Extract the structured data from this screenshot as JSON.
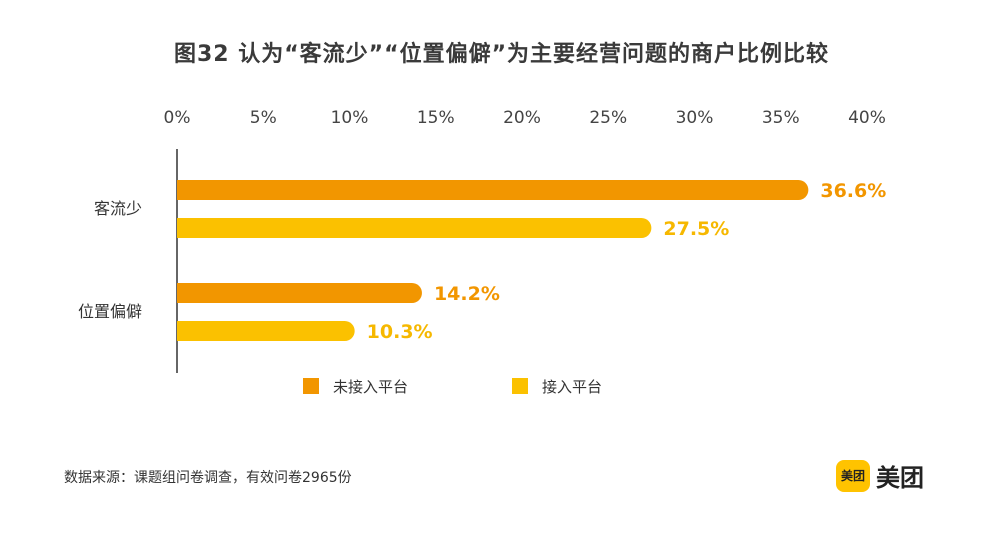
{
  "title": "图32  认为“客流少”“位置偏僻”为主要经营问题的商户比例比较",
  "source": "数据来源：课题组问卷调查，有效问卷2965份",
  "logo": {
    "badge_text": "美团",
    "text": "美团",
    "color": "#FFC300"
  },
  "colors": {
    "series1": "#F29600",
    "series2": "#FBC100",
    "value_label1": "#F29600",
    "value_label2": "#F6B800"
  },
  "chart_data": {
    "type": "bar",
    "orientation": "horizontal",
    "categories": [
      "客流少",
      "位置偏僻"
    ],
    "series": [
      {
        "name": "未接入平台",
        "values": [
          36.6,
          14.2
        ],
        "labels": [
          "36.6%",
          "14.2%"
        ]
      },
      {
        "name": "接入平台",
        "values": [
          27.5,
          10.3
        ],
        "labels": [
          "27.5%",
          "10.3%"
        ]
      }
    ],
    "xlim": [
      0,
      40
    ],
    "x_ticks": [
      "0%",
      "5%",
      "10%",
      "15%",
      "20%",
      "25%",
      "30%",
      "35%",
      "40%"
    ],
    "x_axis_position": "top",
    "grid": false,
    "legend_position": "bottom"
  }
}
